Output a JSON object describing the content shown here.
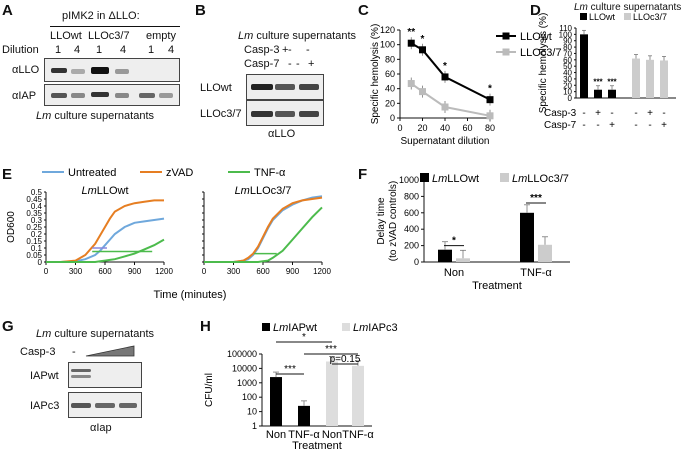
{
  "panel_a": {
    "label": "A",
    "header": "pIMK2 in ΔLLO:",
    "groups": [
      "LLOwt",
      "LLOc3/7",
      "empty"
    ],
    "dilution_label": "Dilution",
    "dilutions": [
      "1",
      "4",
      "1",
      "4",
      "1",
      "4"
    ],
    "blot_rows": [
      "αLLO",
      "αIAP"
    ],
    "caption_italic": "Lm",
    "caption_rest": " culture supernatants"
  },
  "panel_b": {
    "label": "B",
    "header_italic": "Lm",
    "header_rest": " culture supernatants",
    "rows": [
      {
        "name": "Casp-3",
        "marks": [
          "-",
          "+",
          "-"
        ]
      },
      {
        "name": "Casp-7",
        "marks": [
          "-",
          "-",
          "+"
        ]
      }
    ],
    "blot_rows": [
      "LLOwt",
      "LLOc3/7"
    ],
    "footer": "αLLO"
  },
  "panel_c": {
    "label": "C",
    "chart_data": {
      "type": "line",
      "xlabel": "Supernatant dilution",
      "ylabel": "Specific hemolysis (%)",
      "x": [
        10,
        20,
        40,
        80
      ],
      "xticks": [
        "0",
        "20",
        "40",
        "60",
        "80"
      ],
      "yticks": [
        "0",
        "20",
        "40",
        "60",
        "80",
        "100",
        "120"
      ],
      "xlim": [
        0,
        80
      ],
      "ylim": [
        0,
        120
      ],
      "series": [
        {
          "name": "LLOwt",
          "values": [
            102,
            93,
            56,
            25
          ],
          "color": "#000000"
        },
        {
          "name": "LLOc3/7",
          "values": [
            47,
            36,
            15,
            3
          ],
          "color": "#bbbbbb"
        }
      ],
      "annotations": [
        "**",
        "*",
        "*",
        "*"
      ]
    }
  },
  "panel_d": {
    "label": "D",
    "title_italic": "Lm",
    "title_rest": " culture supernatants",
    "chart_data": {
      "type": "bar",
      "ylabel": "Specific hemolysis (%)",
      "yticks": [
        "0",
        "10",
        "20",
        "30",
        "40",
        "50",
        "60",
        "70",
        "80",
        "90",
        "100",
        "110"
      ],
      "ylim": [
        0,
        110
      ],
      "series": [
        {
          "name": "LLOwt",
          "values": [
            100,
            13,
            13
          ],
          "color": "#000000"
        },
        {
          "name": "LLOc3/7",
          "values": [
            62,
            60,
            59
          ],
          "color": "#cccccc"
        }
      ],
      "annotations": [
        "***",
        "***"
      ],
      "condition_rows": [
        {
          "name": "Casp-3",
          "marks": [
            "-",
            "+",
            "-",
            "-",
            "+",
            "-"
          ]
        },
        {
          "name": "Casp-7",
          "marks": [
            "-",
            "-",
            "+",
            "-",
            "-",
            "+"
          ]
        }
      ]
    }
  },
  "panel_e": {
    "label": "E",
    "chart_data": {
      "type": "line",
      "legend": [
        "Untreated",
        "zVAD",
        "TNF-α"
      ],
      "colors": [
        "#6fa8dc",
        "#e67e22",
        "#4cbb4c"
      ],
      "ylabel": "OD600",
      "xlabel": "Time (minutes)",
      "yticks": [
        "0",
        "0.05",
        "0.1",
        "0.15",
        "0.2",
        "0.25",
        "0.3",
        "0.35",
        "0.4",
        "0.45",
        "0.5"
      ],
      "xticks": [
        "0",
        "300",
        "600",
        "900",
        "1200"
      ],
      "ylim": [
        0,
        0.5
      ],
      "xlim": [
        0,
        1200
      ],
      "subplots": [
        {
          "title_italic": "Lm",
          "title_rest": "LLOwt",
          "x": [
            0,
            150,
            300,
            400,
            500,
            550,
            600,
            650,
            700,
            800,
            900,
            1000,
            1100,
            1200
          ],
          "series": [
            {
              "name": "Untreated",
              "values": [
                0,
                0,
                0.005,
                0.02,
                0.05,
                0.08,
                0.12,
                0.16,
                0.2,
                0.25,
                0.28,
                0.29,
                0.3,
                0.31
              ]
            },
            {
              "name": "zVAD",
              "values": [
                0,
                0,
                0.01,
                0.05,
                0.13,
                0.19,
                0.25,
                0.31,
                0.36,
                0.4,
                0.42,
                0.43,
                0.44,
                0.44
              ]
            },
            {
              "name": "TNF-α",
              "values": [
                0,
                0,
                0,
                0,
                0,
                0.005,
                0.01,
                0.015,
                0.02,
                0.04,
                0.06,
                0.09,
                0.12,
                0.16
              ]
            }
          ]
        },
        {
          "title_italic": "Lm",
          "title_rest": "LLOc3/7",
          "x": [
            0,
            150,
            300,
            400,
            450,
            500,
            550,
            600,
            650,
            700,
            800,
            900,
            1000,
            1100,
            1200
          ],
          "series": [
            {
              "name": "Untreated",
              "values": [
                0,
                0,
                0,
                0.01,
                0.02,
                0.05,
                0.1,
                0.17,
                0.24,
                0.3,
                0.37,
                0.41,
                0.44,
                0.46,
                0.47
              ]
            },
            {
              "name": "zVAD",
              "values": [
                0,
                0,
                0,
                0.01,
                0.03,
                0.06,
                0.11,
                0.18,
                0.25,
                0.31,
                0.38,
                0.42,
                0.44,
                0.45,
                0.46
              ]
            },
            {
              "name": "TNF-α",
              "values": [
                0,
                0,
                0,
                0,
                0,
                0,
                0,
                0.005,
                0.01,
                0.03,
                0.08,
                0.16,
                0.24,
                0.32,
                0.39
              ]
            }
          ]
        }
      ]
    }
  },
  "panel_f": {
    "label": "F",
    "chart_data": {
      "type": "bar",
      "legend": [
        {
          "italic": "Lm",
          "rest": "LLOwt"
        },
        {
          "italic": "Lm",
          "rest": "LLOc3/7"
        }
      ],
      "ylabel": "Delay time",
      "ylabel2": "(to zVAD controls)",
      "xlabel": "Treatment",
      "categories": [
        "Non",
        "TNF-α"
      ],
      "yticks": [
        "0",
        "200",
        "400",
        "600",
        "800",
        "1000"
      ],
      "ylim": [
        0,
        1000
      ],
      "series": [
        {
          "name": "LmLLOwt",
          "values": [
            150,
            600
          ],
          "color": "#000000"
        },
        {
          "name": "LmLLOc3/7",
          "values": [
            45,
            210
          ],
          "color": "#cccccc"
        }
      ],
      "annotations": [
        "*",
        "***"
      ]
    }
  },
  "panel_g": {
    "label": "G",
    "header_italic": "Lm",
    "header_rest": " culture supernatants",
    "casp_label": "Casp-3",
    "minus": "-",
    "blot_rows": [
      "IAPwt",
      "IAPc3"
    ],
    "footer": "αIap"
  },
  "panel_h": {
    "label": "H",
    "chart_data": {
      "type": "bar",
      "legend": [
        {
          "italic": "Lm",
          "rest": "IAPwt"
        },
        {
          "italic": "Lm",
          "rest": "IAPc3"
        }
      ],
      "ylabel": "CFU/ml",
      "xlabel": "Treatment",
      "yticks": [
        "1",
        "10",
        "100",
        "1000",
        "10000",
        "100000"
      ],
      "scale": "log",
      "categories": [
        "Non",
        "TNF-α",
        "Non",
        "TNF-α"
      ],
      "values": [
        2500,
        25,
        30000,
        15000
      ],
      "colors": [
        "#000000",
        "#000000",
        "#dddddd",
        "#dddddd"
      ],
      "annotations": [
        "*",
        "***",
        "***",
        "p=0.15"
      ]
    }
  }
}
